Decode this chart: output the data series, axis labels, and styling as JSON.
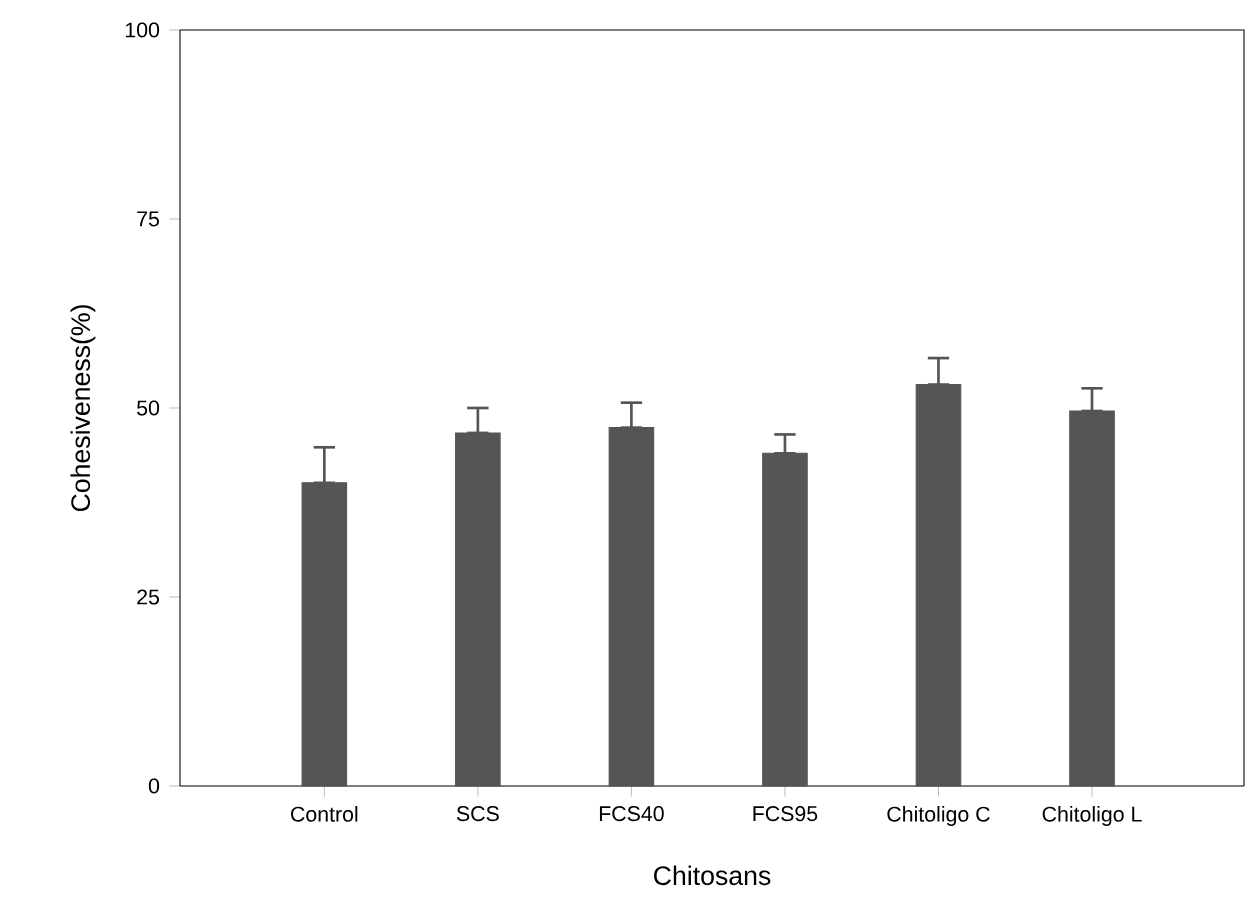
{
  "chart_data": {
    "type": "bar",
    "xlabel": "Chitosans",
    "ylabel": "Cohesiveness(%)",
    "categories": [
      "Control",
      "SCS",
      "FCS40",
      "FCS95",
      "Chitoligo C",
      "Chitoligo L"
    ],
    "values": [
      40.1,
      46.7,
      47.4,
      44.0,
      53.1,
      49.6
    ],
    "errors": [
      [
        40.1,
        44.8
      ],
      [
        46.7,
        50.0
      ],
      [
        47.4,
        50.7
      ],
      [
        44.0,
        46.5
      ],
      [
        53.1,
        56.6
      ],
      [
        49.6,
        52.6
      ]
    ],
    "color": "#555555",
    "ylim": [
      0,
      100
    ],
    "yticks": [
      0,
      25,
      50,
      75,
      100
    ],
    "grid": false
  }
}
